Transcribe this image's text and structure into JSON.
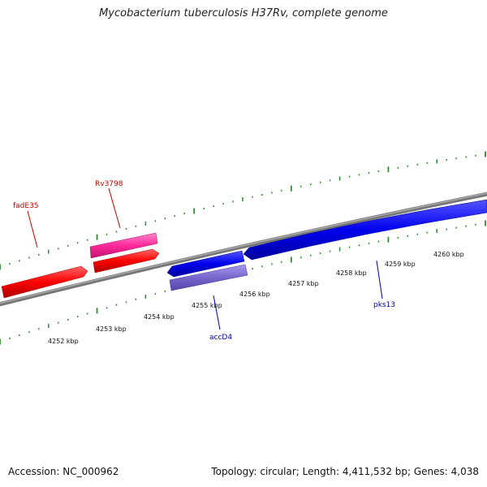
{
  "title": "Mycobacterium tuberculosis H37Rv, complete genome",
  "footer": {
    "accession": "Accession: NC_000962",
    "summary": "Topology: circular; Length: 4,411,532 bp; Genes: 4,038"
  },
  "axis_labels": [
    "4252 kbp",
    "4253 kbp",
    "4254 kbp",
    "4255 kbp",
    "4256 kbp",
    "4257 kbp",
    "4258 kbp",
    "4259 kbp",
    "4260 kbp"
  ],
  "genes": [
    {
      "name": "fadE35",
      "color": "#cc0000"
    },
    {
      "name": "Rv3798",
      "color": "#cc0000"
    },
    {
      "name": "accD4",
      "color": "#0000aa"
    },
    {
      "name": "pks13",
      "color": "#0000aa"
    }
  ],
  "colors": {
    "backbone": "#888888",
    "forward_cds": "#ff0000",
    "forward_misc": "#ff3399",
    "reverse_cds": "#0000ee",
    "reverse_misc": "#7766cc",
    "ticks": "#2e8b2e"
  }
}
